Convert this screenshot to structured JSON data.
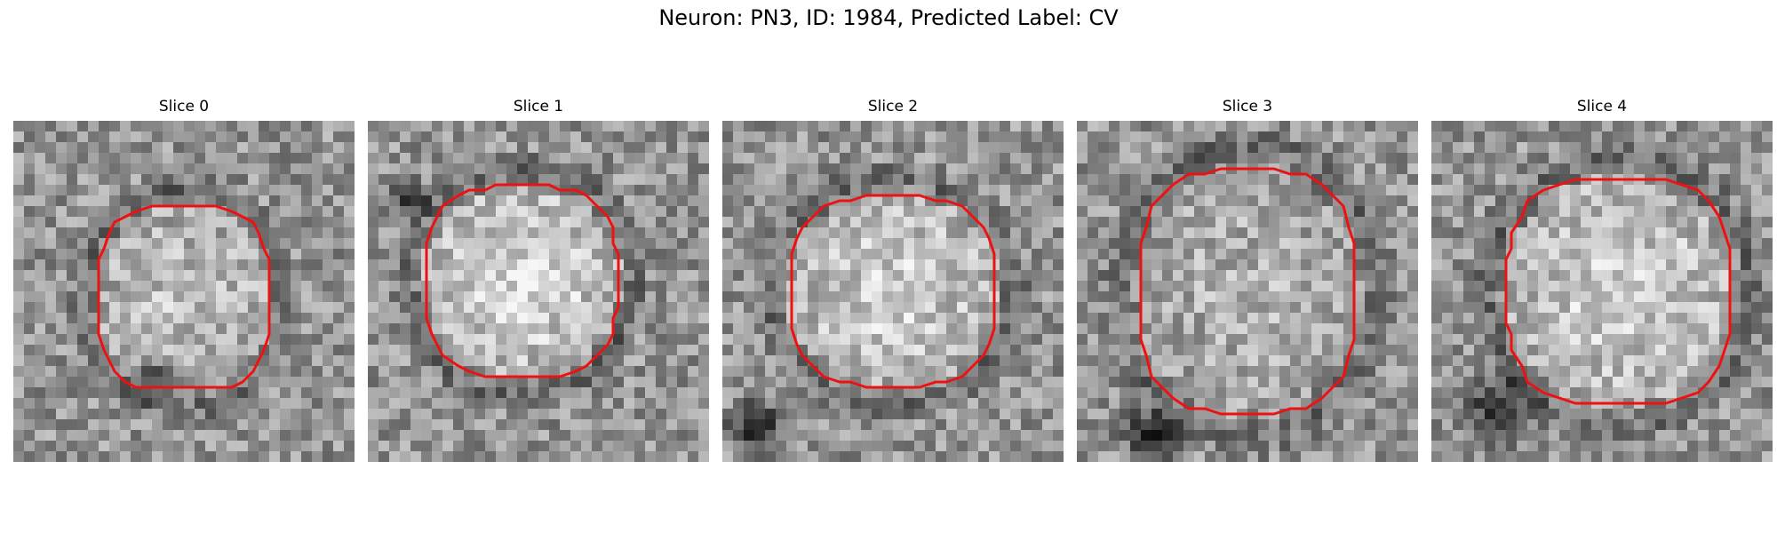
{
  "figure": {
    "title": "Neuron: PN3, ID: 1984, Predicted Label: CV",
    "colormap": "gray",
    "contour_color": "#ee1111",
    "panels": [
      {
        "title": "Slice 0",
        "seed": 11,
        "center": [
          0.5,
          0.52
        ],
        "radius": [
          0.26,
          0.28
        ],
        "bright": 0.18,
        "darkBlob": [
          0.42,
          0.76,
          0.09
        ]
      },
      {
        "title": "Slice 1",
        "seed": 23,
        "center": [
          0.45,
          0.47
        ],
        "radius": [
          0.29,
          0.29
        ],
        "bright": 0.3,
        "darkBlob": [
          0.12,
          0.22,
          0.08
        ]
      },
      {
        "title": "Slice 2",
        "seed": 37,
        "center": [
          0.5,
          0.5
        ],
        "radius": [
          0.31,
          0.29
        ],
        "bright": 0.26,
        "darkBlob": [
          0.1,
          0.9,
          0.12
        ]
      },
      {
        "title": "Slice 3",
        "seed": 41,
        "center": [
          0.5,
          0.5
        ],
        "radius": [
          0.33,
          0.37
        ],
        "bright": 0.12,
        "darkBlob": [
          0.22,
          0.92,
          0.12
        ]
      },
      {
        "title": "Slice 4",
        "seed": 53,
        "center": [
          0.55,
          0.5
        ],
        "radius": [
          0.34,
          0.34
        ],
        "bright": 0.26,
        "darkBlob": [
          0.2,
          0.85,
          0.14
        ]
      }
    ]
  }
}
